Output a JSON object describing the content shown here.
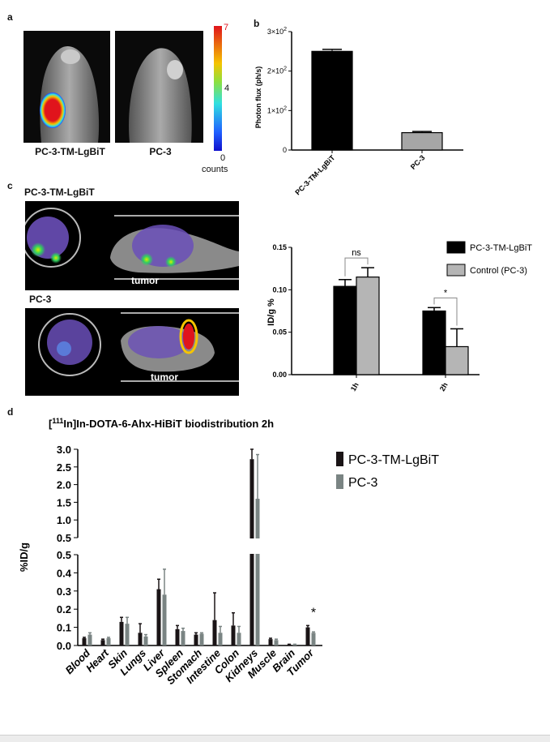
{
  "panels": {
    "a": {
      "label": "a",
      "left_caption": "PC-3-TM-LgBiT",
      "right_caption": "PC-3",
      "colorbar": {
        "max": "7",
        "mid": "4",
        "min": "0",
        "unit": "counts"
      },
      "colors": {
        "hot": "#e0141c",
        "warm": "#f5c400",
        "cool": "#2040ff"
      }
    },
    "b": {
      "label": "b"
    },
    "c": {
      "label": "c",
      "top_label": "PC-3-TM-LgBiT",
      "bottom_label": "PC-3",
      "tumor_label_1": "tumor",
      "tumor_label_2": "tumor"
    },
    "d": {
      "label": "d"
    }
  },
  "chart_data": [
    {
      "id": "b",
      "type": "bar",
      "categories": [
        "PC-3-TM-LgBiT",
        "PC-3"
      ],
      "values": [
        250,
        44
      ],
      "errors": [
        5,
        3
      ],
      "colors": [
        "#000000",
        "#a6a6a6"
      ],
      "ylabel": "Photon flux (ph/s)",
      "yticks": [
        {
          "v": 0,
          "label": "0"
        },
        {
          "v": 100,
          "label": "1×10²"
        },
        {
          "v": 200,
          "label": "2×10²"
        },
        {
          "v": 300,
          "label": "3×10²"
        }
      ],
      "ylim": [
        0,
        300
      ]
    },
    {
      "id": "c",
      "type": "bar",
      "categories": [
        "1h",
        "2h"
      ],
      "series": [
        {
          "name": "PC-3-TM-LgBiT",
          "values": [
            0.104,
            0.075
          ],
          "errors": [
            0.008,
            0.004
          ],
          "color": "#000000"
        },
        {
          "name": "Control (PC-3)",
          "values": [
            0.115,
            0.033
          ],
          "errors": [
            0.011,
            0.021
          ],
          "color": "#b5b5b5"
        }
      ],
      "ylabel": "ID/g %",
      "yticks": [
        "0.00",
        "0.05",
        "0.10",
        "0.15"
      ],
      "ylim": [
        0,
        0.15
      ],
      "annotations": [
        {
          "text": "ns",
          "category": "1h"
        },
        {
          "text": "*",
          "category": "2h"
        }
      ],
      "legend": "right"
    },
    {
      "id": "d",
      "type": "bar",
      "title_sup": "111",
      "title_pre": "[",
      "title_post": "In]In-DOTA-6-Ahx-HiBiT biodistribution 2h",
      "categories": [
        "Blood",
        "Heart",
        "Skin",
        "Lungs",
        "Liver",
        "Spleen",
        "Stomach",
        "Intestine",
        "Colon",
        "Kidneys",
        "Muscle",
        "Brain",
        "Tumor"
      ],
      "series": [
        {
          "name": "PC-3-TM-LgBiT",
          "color": "#1a1416",
          "values": [
            0.04,
            0.03,
            0.13,
            0.07,
            0.31,
            0.09,
            0.06,
            0.14,
            0.11,
            2.72,
            0.035,
            0.005,
            0.1
          ],
          "errors": [
            0.005,
            0.005,
            0.025,
            0.05,
            0.055,
            0.02,
            0.01,
            0.15,
            0.07,
            0.28,
            0.005,
            0.002,
            0.01
          ]
        },
        {
          "name": "PC-3",
          "color": "#7a8483",
          "values": [
            0.06,
            0.04,
            0.12,
            0.05,
            0.28,
            0.08,
            0.065,
            0.07,
            0.07,
            1.6,
            0.03,
            0.005,
            0.07
          ],
          "errors": [
            0.01,
            0.005,
            0.035,
            0.01,
            0.14,
            0.015,
            0.005,
            0.035,
            0.035,
            1.25,
            0.005,
            0.002,
            0.005
          ]
        }
      ],
      "ylabel": "%ID/g",
      "yticks_low": [
        "0.0",
        "0.1",
        "0.2",
        "0.3",
        "0.4",
        "0.5"
      ],
      "yticks_high": [
        "0.5",
        "1.0",
        "1.5",
        "2.0",
        "2.5",
        "3.0"
      ],
      "axis_break": [
        0.5,
        0.5
      ],
      "annotations": [
        {
          "text": "*",
          "category": "Tumor"
        }
      ],
      "legend": "right"
    }
  ]
}
